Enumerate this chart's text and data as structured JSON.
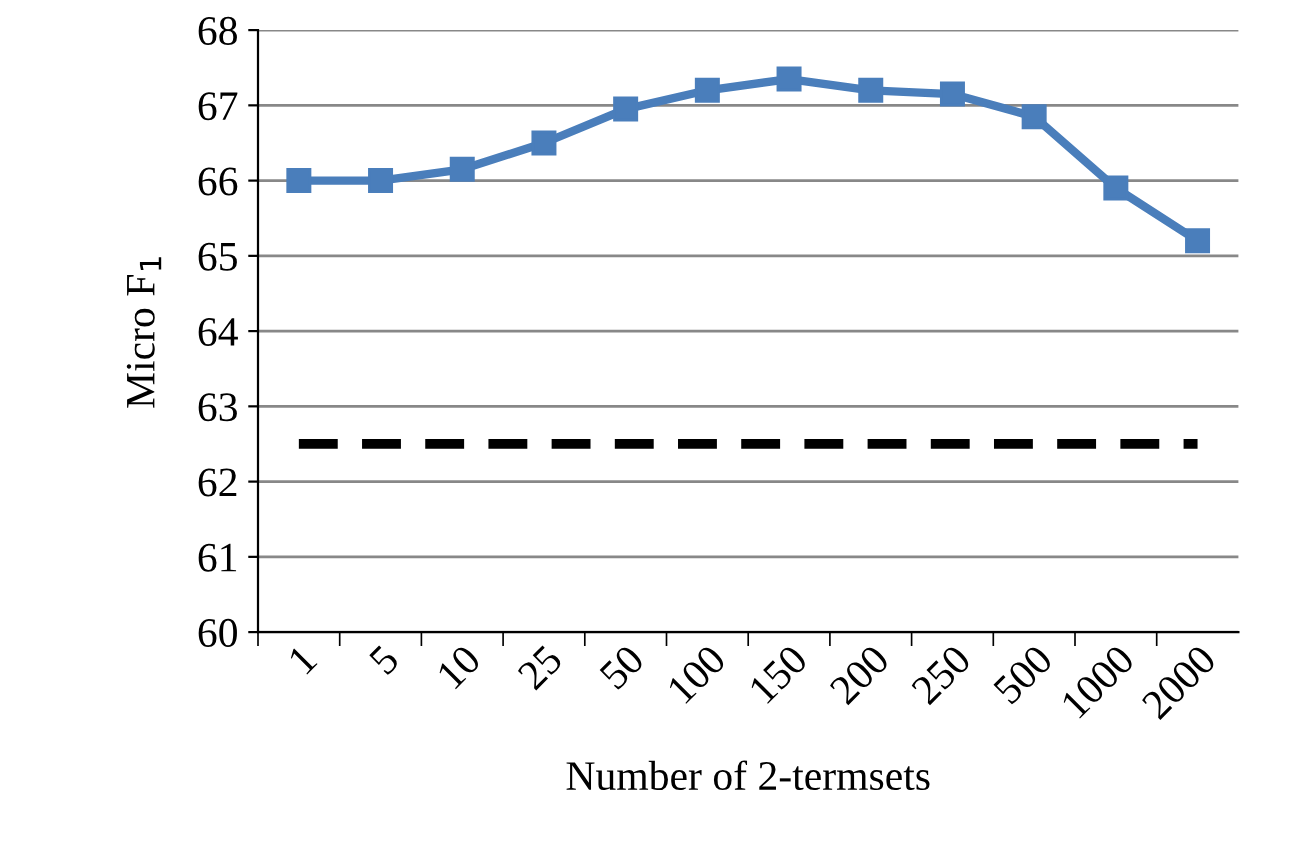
{
  "chart_data": {
    "type": "line",
    "xlabel": "Number of 2-termsets",
    "ylabel": "Micro F$_{1}$",
    "categories": [
      "1",
      "5",
      "10",
      "25",
      "50",
      "100",
      "150",
      "200",
      "250",
      "500",
      "1000",
      "2000"
    ],
    "series": [
      {
        "color": "#4a7ebb",
        "marker": "square",
        "line_style": "solid",
        "values": [
          66.0,
          66.0,
          66.15,
          66.5,
          66.95,
          67.2,
          67.35,
          67.2,
          67.15,
          66.85,
          65.9,
          65.2
        ]
      },
      {
        "color": "#000000",
        "marker": "none",
        "line_style": "dashed",
        "values": [
          62.5,
          62.5,
          62.5,
          62.5,
          62.5,
          62.5,
          62.5,
          62.5,
          62.5,
          62.5,
          62.5,
          62.5
        ]
      }
    ],
    "ylim": [
      60,
      68
    ],
    "yticks": [
      60,
      61,
      62,
      63,
      64,
      65,
      66,
      67,
      68
    ],
    "grid": "y",
    "legend": false
  }
}
